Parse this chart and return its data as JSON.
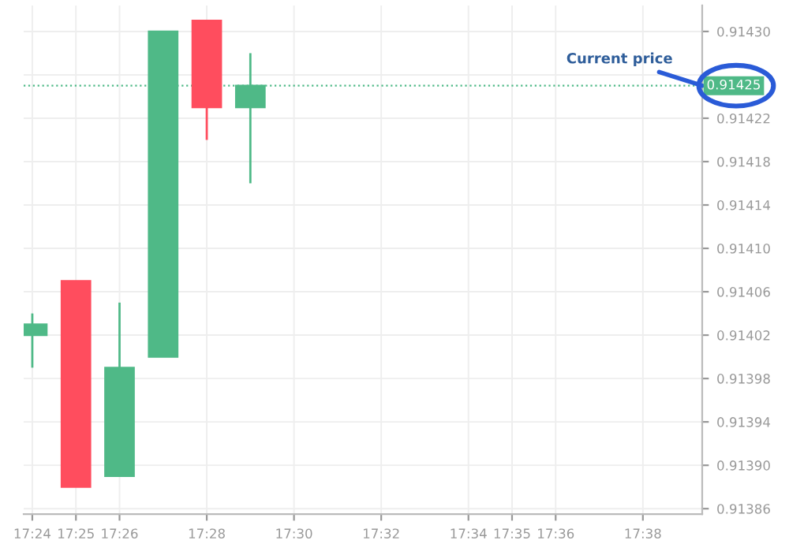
{
  "chart_data": {
    "type": "candlestick",
    "x": [
      17.4,
      17.41667,
      17.43333,
      17.45,
      17.46667,
      17.48333
    ],
    "ohlc": [
      [
        0.91402,
        0.91404,
        0.91399,
        0.91403
      ],
      [
        0.91407,
        0.91407,
        0.91388,
        0.91388
      ],
      [
        0.91389,
        0.91405,
        0.91389,
        0.91399
      ],
      [
        0.914,
        0.9143,
        0.914,
        0.9143
      ],
      [
        0.91431,
        0.91431,
        0.9142,
        0.91423
      ],
      [
        0.91423,
        0.91428,
        0.91416,
        0.91425
      ]
    ],
    "colors": [
      "#4fb987",
      "#ff4d5e",
      "#4fb987",
      "#4fb987",
      "#ff4d5e",
      "#4fb987"
    ],
    "xlim": [
      17.3967,
      17.656
    ],
    "xticks": [
      {
        "value": 17.4,
        "label": "17:24"
      },
      {
        "value": 17.41667,
        "label": "17:25"
      },
      {
        "value": 17.43333,
        "label": "17:26"
      },
      {
        "value": 17.46667,
        "label": "17:28"
      },
      {
        "value": 17.5,
        "label": "17:30"
      },
      {
        "value": 17.53333,
        "label": "17:32"
      },
      {
        "value": 17.56667,
        "label": "17:34"
      },
      {
        "value": 17.58333,
        "label": "17:35"
      },
      {
        "value": 17.6,
        "label": "17:36"
      },
      {
        "value": 17.63333,
        "label": "17:38"
      }
    ],
    "ylim": [
      0.913855,
      0.914324
    ],
    "yticks": [
      0.91386,
      {
        "value": 0.9139,
        "label": "0.91390"
      },
      0.91394,
      0.91398,
      0.91402,
      0.91406,
      {
        "value": 0.9141,
        "label": "0.91410"
      },
      0.91414,
      0.91418,
      0.91422,
      {
        "value": 0.91426,
        "label": null
      },
      {
        "value": 0.9143,
        "label": "0.91430"
      }
    ],
    "grid": true,
    "ref_lines": [
      {
        "axis": "y",
        "value": 0.91425,
        "label": "0.91425",
        "color": "#4fb987",
        "line_style": "dotted"
      }
    ],
    "annotations": [
      {
        "text": "Current price",
        "x": 17.656,
        "y": 0.91425
      }
    ]
  }
}
